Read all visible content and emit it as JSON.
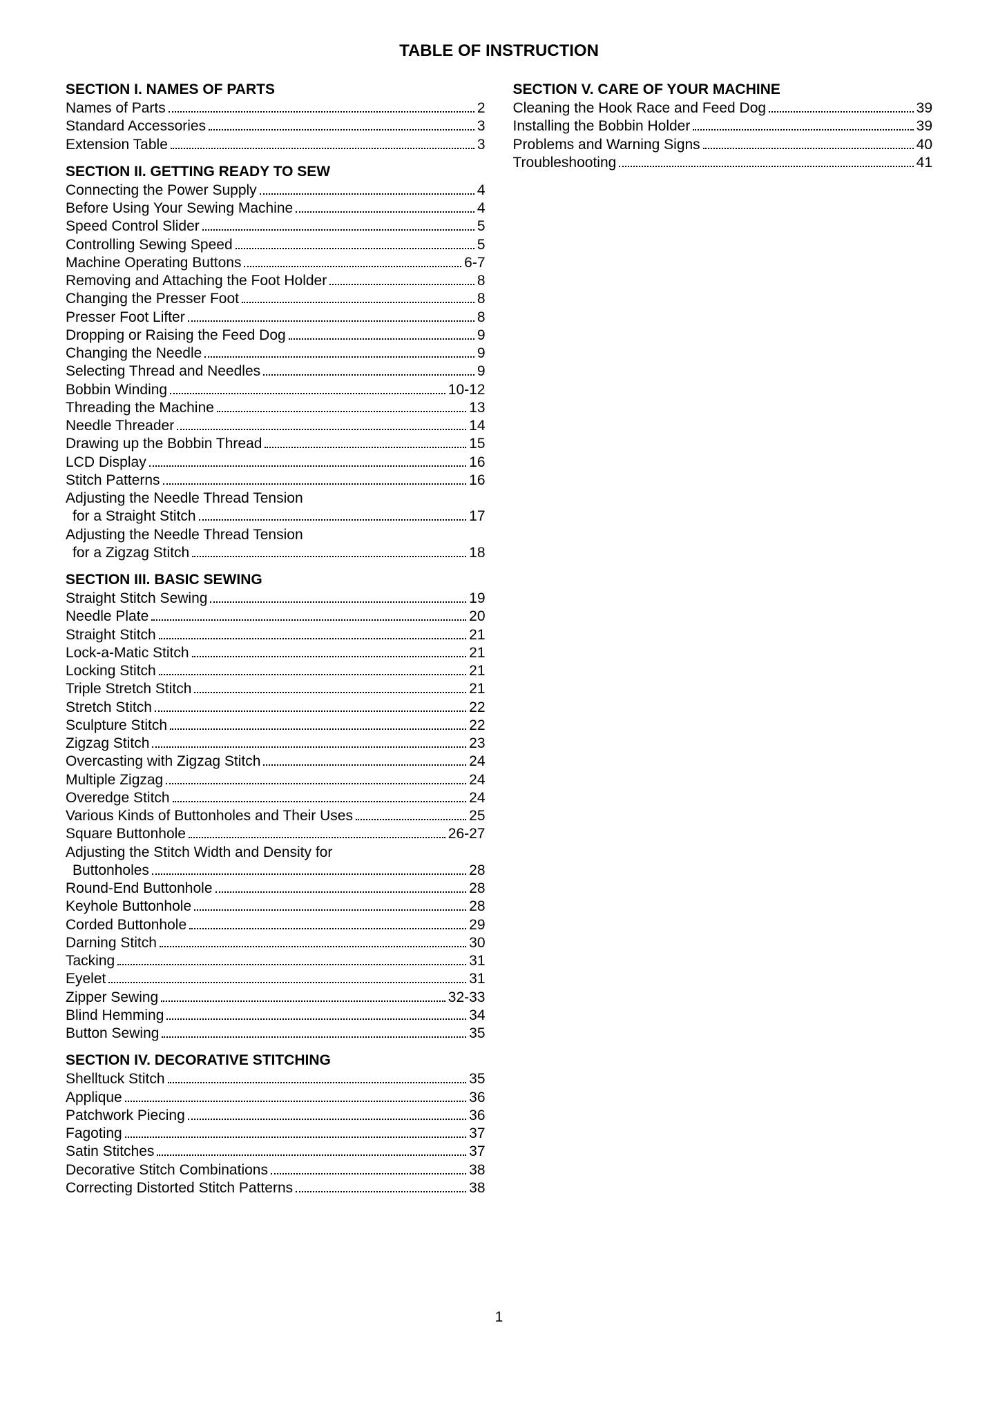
{
  "page_title": "TABLE OF INSTRUCTION",
  "page_number": "1",
  "colors": {
    "text": "#000000",
    "background": "#ffffff"
  },
  "typography": {
    "title_fontsize": 24,
    "section_fontsize": 21,
    "entry_fontsize": 21,
    "font_family": "Arial"
  },
  "left_column": [
    {
      "title": "SECTION I. NAMES OF PARTS",
      "entries": [
        {
          "label": "Names of Parts",
          "page": "2"
        },
        {
          "label": "Standard Accessories",
          "page": "3"
        },
        {
          "label": "Extension Table",
          "page": "3"
        }
      ]
    },
    {
      "title": "SECTION II. GETTING READY TO SEW",
      "entries": [
        {
          "label": "Connecting the Power Supply",
          "page": "4"
        },
        {
          "label": "Before Using Your Sewing Machine",
          "page": "4"
        },
        {
          "label": "Speed Control Slider",
          "page": "5"
        },
        {
          "label": "Controlling Sewing Speed",
          "page": "5"
        },
        {
          "label": "Machine Operating Buttons",
          "page": "6-7"
        },
        {
          "label": "Removing and Attaching the Foot Holder",
          "page": "8"
        },
        {
          "label": "Changing the Presser Foot",
          "page": "8"
        },
        {
          "label": "Presser Foot Lifter",
          "page": "8"
        },
        {
          "label": "Dropping or Raising the Feed Dog",
          "page": "9"
        },
        {
          "label": "Changing the Needle",
          "page": "9"
        },
        {
          "label": "Selecting Thread and Needles",
          "page": "9"
        },
        {
          "label": "Bobbin Winding",
          "page": "10-12"
        },
        {
          "label": "Threading the Machine",
          "page": "13"
        },
        {
          "label": "Needle Threader",
          "page": "14"
        },
        {
          "label": "Drawing up the Bobbin Thread",
          "page": "15"
        },
        {
          "label": "LCD Display",
          "page": "16"
        },
        {
          "label": "Stitch Patterns",
          "page": "16"
        },
        {
          "wrap": true,
          "label1": "Adjusting the Needle Thread Tension",
          "label2": "for a Straight Stitch",
          "page": "17"
        },
        {
          "wrap": true,
          "label1": "Adjusting the Needle Thread Tension",
          "label2": "for a Zigzag Stitch",
          "page": "18"
        }
      ]
    },
    {
      "title": "SECTION III. BASIC SEWING",
      "entries": [
        {
          "label": "Straight Stitch Sewing",
          "page": "19"
        },
        {
          "label": "Needle Plate",
          "page": "20"
        },
        {
          "label": "Straight Stitch",
          "page": "21"
        },
        {
          "label": "Lock-a-Matic Stitch",
          "page": "21"
        },
        {
          "label": "Locking Stitch",
          "page": "21"
        },
        {
          "label": "Triple Stretch Stitch",
          "page": "21"
        },
        {
          "label": "Stretch Stitch",
          "page": "22"
        },
        {
          "label": "Sculpture Stitch",
          "page": "22"
        },
        {
          "label": "Zigzag Stitch",
          "page": "23"
        },
        {
          "label": "Overcasting with Zigzag Stitch",
          "page": "24"
        },
        {
          "label": "Multiple Zigzag",
          "page": "24"
        },
        {
          "label": "Overedge Stitch",
          "page": "24"
        },
        {
          "label": "Various Kinds of Buttonholes and Their Uses",
          "page": "25"
        },
        {
          "label": "Square Buttonhole",
          "page": "26-27"
        },
        {
          "wrap": true,
          "label1": "Adjusting the Stitch Width and Density for",
          "label2": "Buttonholes",
          "page": "28"
        },
        {
          "label": "Round-End Buttonhole",
          "page": "28"
        },
        {
          "label": "Keyhole Buttonhole",
          "page": "28"
        },
        {
          "label": "Corded Buttonhole",
          "page": "29"
        },
        {
          "label": "Darning Stitch",
          "page": "30"
        },
        {
          "label": "Tacking",
          "page": "31"
        },
        {
          "label": "Eyelet",
          "page": "31"
        },
        {
          "label": "Zipper Sewing",
          "page": "32-33"
        },
        {
          "label": "Blind Hemming",
          "page": "34"
        },
        {
          "label": "Button Sewing",
          "page": "35"
        }
      ]
    },
    {
      "title": "SECTION IV. DECORATIVE STITCHING",
      "entries": [
        {
          "label": "Shelltuck Stitch",
          "page": "35"
        },
        {
          "label": "Applique",
          "page": "36"
        },
        {
          "label": "Patchwork Piecing",
          "page": "36"
        },
        {
          "label": "Fagoting",
          "page": "37"
        },
        {
          "label": "Satin Stitches",
          "page": "37"
        },
        {
          "label": "Decorative Stitch Combinations",
          "page": "38"
        },
        {
          "label": "Correcting Distorted Stitch Patterns",
          "page": "38"
        }
      ]
    }
  ],
  "right_column": [
    {
      "title": "SECTION V. CARE OF YOUR MACHINE",
      "entries": [
        {
          "label": "Cleaning the Hook Race and Feed Dog",
          "page": "39"
        },
        {
          "label": "Installing the Bobbin Holder",
          "page": "39"
        },
        {
          "label": "Problems and Warning Signs",
          "page": "40"
        },
        {
          "label": "Troubleshooting",
          "page": "41"
        }
      ]
    }
  ]
}
